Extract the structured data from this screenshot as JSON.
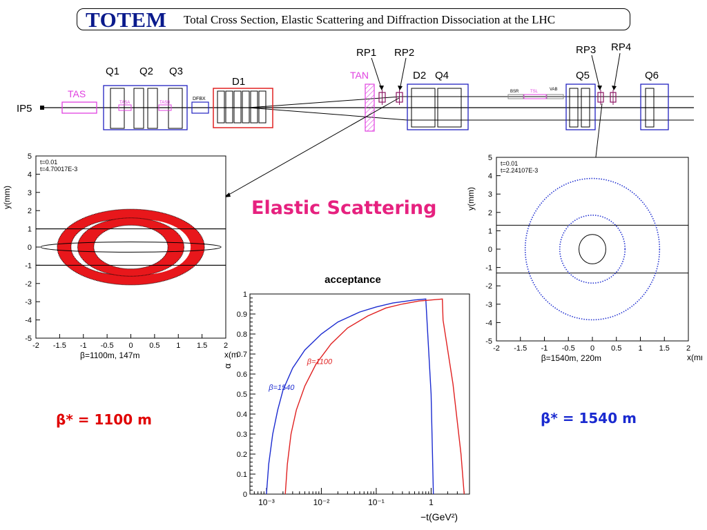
{
  "header": {
    "logo": "TOTEM",
    "title": "Total Cross Section, Elastic Scattering and Diffraction Dissociation at the LHC"
  },
  "beamline": {
    "labels": {
      "ip5": "IP5",
      "tas": "TAS",
      "q1": "Q1",
      "q2": "Q2",
      "q3": "Q3",
      "d1": "D1",
      "dfbx": "DFBX",
      "tasa": "TASA",
      "tasb": "TASB",
      "tan": "TAN",
      "rp1": "RP1",
      "rp2": "RP2",
      "d2": "D2",
      "q4": "Q4",
      "bsr": "BSR",
      "tsl": "TSL",
      "vab": "VAB",
      "rp3": "RP3",
      "rp4": "RP4",
      "q5": "Q5",
      "q6": "Q6"
    },
    "colors": {
      "magnet": "#2020c0",
      "dipole": "#e02020",
      "absorber": "#e040e0",
      "pot": "#8a1060"
    }
  },
  "main_title": "Elastic Scattering",
  "left_plot": {
    "t_labels": [
      "t=0.01",
      "t=4.70017E-3"
    ],
    "xlabel": "x(mm)",
    "ylabel": "y(mm)",
    "caption": "β=1100m, 147m",
    "x_ticks": [
      "-2",
      "-1.5",
      "-1",
      "-0.5",
      "0",
      "0.5",
      "1",
      "1.5",
      "2"
    ],
    "y_ticks": [
      "5",
      "4",
      "3",
      "2",
      "1",
      "0",
      "-1",
      "-2",
      "-3",
      "-4",
      "-5"
    ],
    "xlim": [
      -2,
      2
    ],
    "ylim": [
      -5,
      5
    ],
    "horizontal_lines_y": [
      1,
      -1
    ],
    "fill_color": "#e8171b"
  },
  "right_plot": {
    "t_labels": [
      "t=0.01",
      "t=2.24107E-3"
    ],
    "xlabel": "x(mm)",
    "ylabel": "y(mm)",
    "caption": "β=1540m, 220m",
    "x_ticks": [
      "-2",
      "-1.5",
      "-1",
      "-0.5",
      "0",
      "0.5",
      "1",
      "1.5",
      "2"
    ],
    "y_ticks": [
      "5",
      "4",
      "3",
      "2",
      "1",
      "0",
      "-1",
      "-2",
      "-3",
      "-4",
      "-5"
    ],
    "xlim": [
      -2,
      2
    ],
    "ylim": [
      -5,
      5
    ],
    "horizontal_lines_y": [
      1.3,
      -1.3
    ],
    "circle_color": "#2030d0"
  },
  "beta_left": "β* = 1100 m",
  "beta_right": "β* = 1540 m",
  "chart_data": [
    {
      "type": "line",
      "title": "acceptance",
      "xlabel": "−t(GeV²)",
      "ylabel": "α",
      "xscale": "log",
      "xlim": [
        0.0005,
        5
      ],
      "ylim": [
        0,
        1
      ],
      "x_tick_labels": [
        "10⁻³",
        "10⁻²",
        "10⁻¹",
        "1"
      ],
      "y_tick_labels": [
        "0",
        "0.1",
        "0.2",
        "0.3",
        "0.4",
        "0.5",
        "0.6",
        "0.7",
        "0.8",
        "0.9",
        "1"
      ],
      "series": [
        {
          "name": "β=1540",
          "color": "#1a2ad0",
          "x": [
            0.001,
            0.0011,
            0.0013,
            0.0016,
            0.002,
            0.003,
            0.005,
            0.01,
            0.02,
            0.05,
            0.1,
            0.2,
            0.5,
            0.8,
            1.0,
            1.1
          ],
          "y": [
            0,
            0.15,
            0.3,
            0.42,
            0.52,
            0.63,
            0.72,
            0.8,
            0.86,
            0.91,
            0.935,
            0.955,
            0.97,
            0.975,
            0.5,
            0
          ]
        },
        {
          "name": "β=1100",
          "color": "#e02020",
          "x": [
            0.0022,
            0.0024,
            0.0028,
            0.0035,
            0.005,
            0.008,
            0.015,
            0.03,
            0.07,
            0.15,
            0.3,
            0.6,
            1.0,
            1.6,
            1.65,
            2.5,
            3.5,
            4.0
          ],
          "y": [
            0,
            0.15,
            0.3,
            0.42,
            0.54,
            0.65,
            0.75,
            0.83,
            0.89,
            0.93,
            0.95,
            0.965,
            0.97,
            0.975,
            0.87,
            0.55,
            0.2,
            0
          ]
        }
      ]
    }
  ]
}
